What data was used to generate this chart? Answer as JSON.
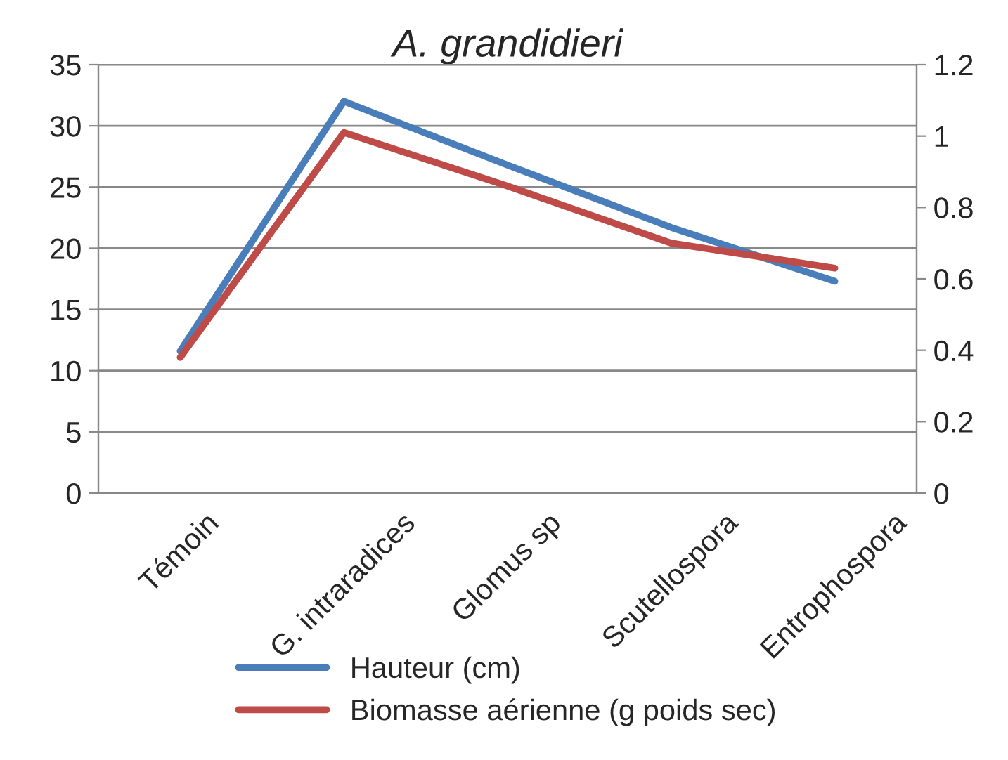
{
  "chart_data": {
    "type": "line",
    "title": "A. grandidieri",
    "categories": [
      "Témoin",
      "G. intraradices",
      "Glomus sp",
      "Scutellospora",
      "Entrophospora"
    ],
    "series": [
      {
        "name": "Hauteur (cm)",
        "color": "#4a7ebb",
        "values": [
          11.6,
          32.0,
          26.8,
          21.7,
          17.3
        ]
      },
      {
        "name": "Biomasse aérienne (g poids sec)",
        "color": "#be4b48",
        "values": [
          0.38,
          1.01,
          0.86,
          0.7,
          0.63
        ],
        "axis": "y2"
      }
    ],
    "ylim": [
      0,
      35
    ],
    "yticks": [
      0,
      5,
      10,
      15,
      20,
      25,
      30,
      35
    ],
    "y2lim": [
      0,
      1.2
    ],
    "y2ticks": [
      0,
      0.2,
      0.4,
      0.6,
      0.8,
      1,
      1.2
    ],
    "grid": "y",
    "legend": "bottom",
    "marker": "none",
    "line_style": "solid"
  }
}
